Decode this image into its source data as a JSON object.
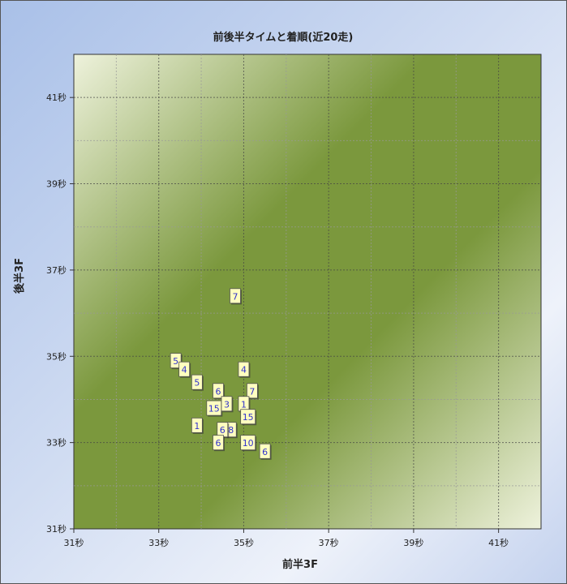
{
  "chart_data": {
    "type": "scatter",
    "title": "前後半タイムと着順(近20走)",
    "xlabel": "前半3F",
    "ylabel": "後半3F",
    "xlim": [
      31,
      42
    ],
    "ylim": [
      31,
      42
    ],
    "x_ticks": [
      {
        "v": 31,
        "label": "31秒"
      },
      {
        "v": 33,
        "label": "33秒"
      },
      {
        "v": 35,
        "label": "35秒"
      },
      {
        "v": 37,
        "label": "37秒"
      },
      {
        "v": 39,
        "label": "39秒"
      },
      {
        "v": 41,
        "label": "41秒"
      }
    ],
    "y_ticks": [
      {
        "v": 31,
        "label": "31秒"
      },
      {
        "v": 33,
        "label": "33秒"
      },
      {
        "v": 35,
        "label": "35秒"
      },
      {
        "v": 37,
        "label": "37秒"
      },
      {
        "v": 39,
        "label": "39秒"
      },
      {
        "v": 41,
        "label": "41秒"
      }
    ],
    "grid": true,
    "points": [
      {
        "x": 34.8,
        "y": 36.4,
        "label": "7"
      },
      {
        "x": 33.4,
        "y": 34.9,
        "label": "5"
      },
      {
        "x": 33.6,
        "y": 34.7,
        "label": "4"
      },
      {
        "x": 33.9,
        "y": 34.4,
        "label": "5"
      },
      {
        "x": 35.0,
        "y": 34.7,
        "label": "4"
      },
      {
        "x": 34.4,
        "y": 34.2,
        "label": "6"
      },
      {
        "x": 35.2,
        "y": 34.2,
        "label": "7"
      },
      {
        "x": 35.0,
        "y": 33.9,
        "label": "1"
      },
      {
        "x": 34.3,
        "y": 33.8,
        "label": "15"
      },
      {
        "x": 34.6,
        "y": 33.9,
        "label": "3"
      },
      {
        "x": 35.1,
        "y": 33.6,
        "label": "15"
      },
      {
        "x": 33.9,
        "y": 33.4,
        "label": "1"
      },
      {
        "x": 34.7,
        "y": 33.3,
        "label": "8"
      },
      {
        "x": 34.5,
        "y": 33.3,
        "label": "6"
      },
      {
        "x": 34.4,
        "y": 33.0,
        "label": "6"
      },
      {
        "x": 35.1,
        "y": 33.0,
        "label": "10"
      },
      {
        "x": 35.5,
        "y": 32.8,
        "label": "6"
      }
    ],
    "colors": {
      "marker_fill": "#ffffc0",
      "marker_text": "#3333cc",
      "plot_dark": "#7b983d",
      "plot_light": "#eef2dc"
    }
  }
}
